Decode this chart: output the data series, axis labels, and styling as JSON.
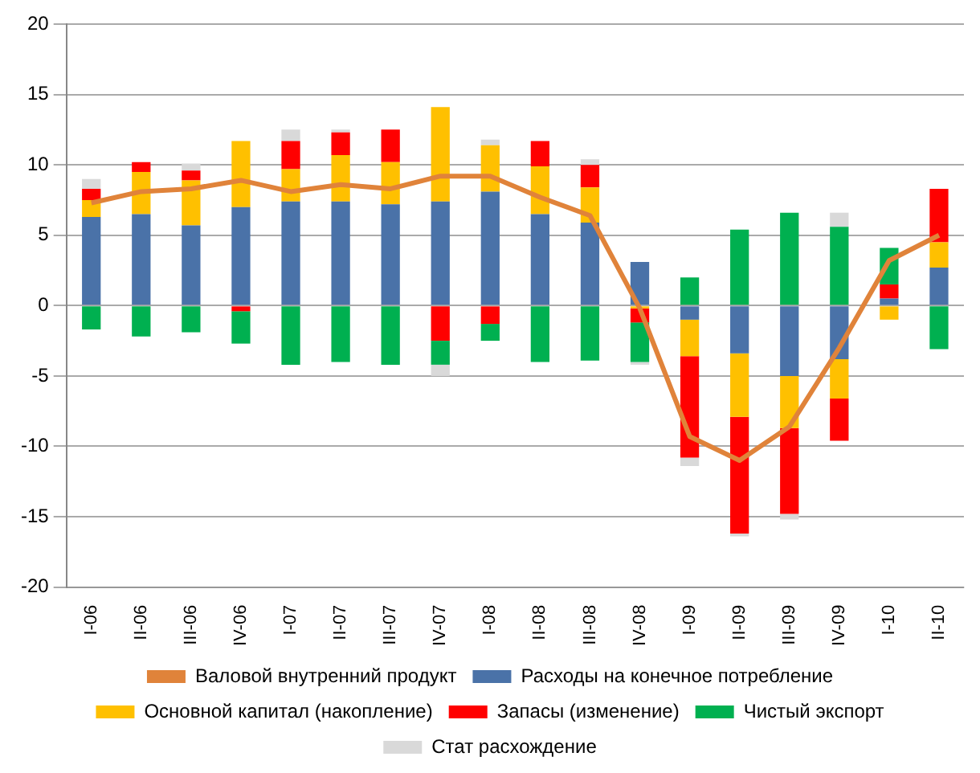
{
  "chart_data": {
    "type": "bar",
    "stacked": true,
    "categories": [
      "I-06",
      "II-06",
      "III-06",
      "IV-06",
      "I-07",
      "II-07",
      "III-07",
      "IV-07",
      "I-08",
      "II-08",
      "III-08",
      "IV-08",
      "I-09",
      "II-09",
      "III-09",
      "IV-09",
      "I-10",
      "II-10"
    ],
    "series": [
      {
        "name": "Расходы на конечное потребление",
        "color": "#4a72a8",
        "values": [
          6.3,
          6.5,
          5.7,
          7.0,
          7.4,
          7.4,
          7.2,
          7.4,
          8.1,
          6.5,
          5.9,
          3.1,
          -1.0,
          -3.4,
          -5.0,
          -3.8,
          0.5,
          2.7
        ]
      },
      {
        "name": "Основной капитал (накопление)",
        "color": "#ffc000",
        "values": [
          1.2,
          3.0,
          3.2,
          4.7,
          2.3,
          3.3,
          3.0,
          6.7,
          3.3,
          3.4,
          2.5,
          -0.2,
          -2.6,
          -4.5,
          -3.7,
          -2.8,
          -1.0,
          1.8
        ]
      },
      {
        "name": "Запасы (изменение)",
        "color": "#ff0000",
        "values": [
          0.8,
          0.7,
          0.7,
          -0.4,
          2.0,
          1.6,
          2.3,
          -2.5,
          -1.3,
          1.8,
          1.6,
          -1.0,
          -7.2,
          -8.3,
          -6.1,
          -3.0,
          1.0,
          3.8
        ]
      },
      {
        "name": "Чистый экспорт",
        "color": "#00b050",
        "values": [
          -1.7,
          -2.2,
          -1.9,
          -2.3,
          -4.2,
          -4.0,
          -4.2,
          -1.7,
          -1.2,
          -4.0,
          -3.9,
          -2.8,
          2.0,
          5.4,
          6.6,
          5.6,
          2.6,
          -3.1
        ]
      },
      {
        "name": "Стат расхождение",
        "color": "#d9d9d9",
        "values": [
          0.7,
          null,
          0.5,
          null,
          0.8,
          0.2,
          null,
          -0.8,
          0.4,
          null,
          0.4,
          -0.2,
          -0.6,
          -0.2,
          -0.4,
          1.0,
          null,
          null
        ]
      },
      {
        "name": "Валовой внутренний продукт",
        "type": "line",
        "color": "#e0833a",
        "values": [
          7.3,
          8.1,
          8.3,
          8.9,
          8.1,
          8.6,
          8.3,
          9.2,
          9.2,
          7.7,
          6.4,
          -0.2,
          -9.3,
          -11.0,
          -8.6,
          -3.0,
          3.2,
          5.0
        ]
      }
    ],
    "ylim": [
      -20,
      20
    ],
    "yticks": [
      -20,
      -15,
      -10,
      -5,
      0,
      5,
      10,
      15,
      20
    ],
    "grid": "y",
    "legend": "bottom",
    "marker": "none"
  }
}
